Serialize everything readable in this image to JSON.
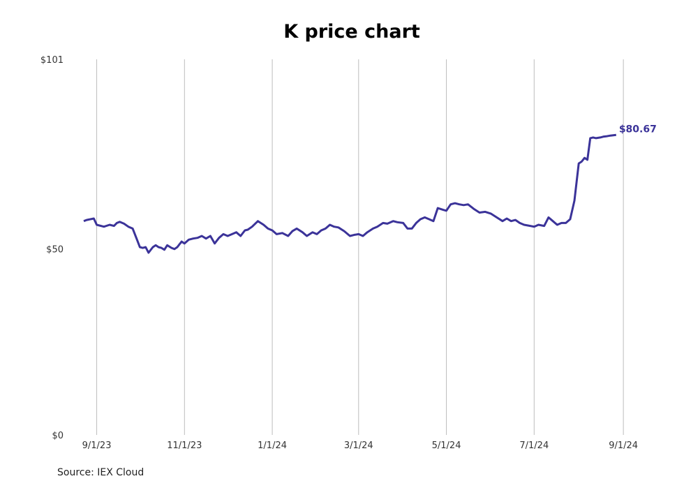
{
  "chart_data": {
    "type": "line",
    "title": "K price chart",
    "xlabel": "",
    "ylabel": "",
    "ylim": [
      0,
      101
    ],
    "y_ticks": [
      {
        "value": 0,
        "label": "$0"
      },
      {
        "value": 50,
        "label": "$50"
      },
      {
        "value": 101,
        "label": "$101"
      }
    ],
    "x_ticks": [
      {
        "date": "2023-09-01",
        "label": "9/1/23"
      },
      {
        "date": "2023-11-01",
        "label": "11/1/23"
      },
      {
        "date": "2024-01-01",
        "label": "1/1/24"
      },
      {
        "date": "2024-03-01",
        "label": "3/1/24"
      },
      {
        "date": "2024-05-01",
        "label": "5/1/24"
      },
      {
        "date": "2024-07-01",
        "label": "7/1/24"
      },
      {
        "date": "2024-09-01",
        "label": "9/1/24"
      }
    ],
    "xlim": [
      "2023-08-23",
      "2024-09-15"
    ],
    "grid": "vertical",
    "line_color": "#3b3399",
    "last_value_label": "$80.67",
    "series": [
      {
        "x": [
          "2023-08-23",
          "2023-08-25",
          "2023-08-30",
          "2023-09-01",
          "2023-09-06",
          "2023-09-10",
          "2023-09-13",
          "2023-09-15",
          "2023-09-17",
          "2023-09-20",
          "2023-09-23",
          "2023-09-26",
          "2023-09-29",
          "2023-10-01",
          "2023-10-03",
          "2023-10-05",
          "2023-10-07",
          "2023-10-10",
          "2023-10-12",
          "2023-10-14",
          "2023-10-16",
          "2023-10-18",
          "2023-10-20",
          "2023-10-23",
          "2023-10-25",
          "2023-10-27",
          "2023-10-30",
          "2023-11-01",
          "2023-11-04",
          "2023-11-07",
          "2023-11-10",
          "2023-11-13",
          "2023-11-16",
          "2023-11-19",
          "2023-11-22",
          "2023-11-25",
          "2023-11-28",
          "2023-12-01",
          "2023-12-04",
          "2023-12-07",
          "2023-12-10",
          "2023-12-13",
          "2023-12-15",
          "2023-12-18",
          "2023-12-22",
          "2023-12-26",
          "2023-12-29",
          "2024-01-01",
          "2024-01-04",
          "2024-01-08",
          "2024-01-12",
          "2024-01-15",
          "2024-01-18",
          "2024-01-22",
          "2024-01-25",
          "2024-01-29",
          "2024-02-01",
          "2024-02-04",
          "2024-02-07",
          "2024-02-10",
          "2024-02-13",
          "2024-02-16",
          "2024-02-20",
          "2024-02-24",
          "2024-02-27",
          "2024-03-01",
          "2024-03-04",
          "2024-03-07",
          "2024-03-11",
          "2024-03-14",
          "2024-03-18",
          "2024-03-21",
          "2024-03-25",
          "2024-03-28",
          "2024-04-01",
          "2024-04-04",
          "2024-04-07",
          "2024-04-10",
          "2024-04-13",
          "2024-04-16",
          "2024-04-19",
          "2024-04-22",
          "2024-04-25",
          "2024-04-29",
          "2024-05-01",
          "2024-05-04",
          "2024-05-07",
          "2024-05-10",
          "2024-05-13",
          "2024-05-16",
          "2024-05-20",
          "2024-05-24",
          "2024-05-28",
          "2024-06-01",
          "2024-06-05",
          "2024-06-09",
          "2024-06-12",
          "2024-06-15",
          "2024-06-18",
          "2024-06-21",
          "2024-06-24",
          "2024-06-27",
          "2024-07-01",
          "2024-07-04",
          "2024-07-08",
          "2024-07-11",
          "2024-07-14",
          "2024-07-17",
          "2024-07-20",
          "2024-07-23",
          "2024-07-26",
          "2024-07-29",
          "2024-08-01",
          "2024-08-03",
          "2024-08-05",
          "2024-08-07",
          "2024-08-09",
          "2024-08-11",
          "2024-08-13",
          "2024-08-16",
          "2024-08-18",
          "2024-08-20",
          "2024-08-23",
          "2024-08-27"
        ],
        "y": [
          57.5,
          57.8,
          58.2,
          56.5,
          56.0,
          56.5,
          56.2,
          57.0,
          57.3,
          56.8,
          56.0,
          55.5,
          52.5,
          50.5,
          50.3,
          50.5,
          49.0,
          50.5,
          51.0,
          50.5,
          50.3,
          49.8,
          51.0,
          50.3,
          50.0,
          50.5,
          52.0,
          51.5,
          52.5,
          52.8,
          53.0,
          53.5,
          52.8,
          53.5,
          51.5,
          53.0,
          54.0,
          53.5,
          54.0,
          54.5,
          53.5,
          55.0,
          55.2,
          56.0,
          57.5,
          56.5,
          55.5,
          55.0,
          54.0,
          54.3,
          53.5,
          54.8,
          55.5,
          54.5,
          53.5,
          54.5,
          54.0,
          55.0,
          55.5,
          56.5,
          56.0,
          55.8,
          54.8,
          53.5,
          53.8,
          54.0,
          53.5,
          54.5,
          55.5,
          56.0,
          57.0,
          56.8,
          57.5,
          57.2,
          57.0,
          55.5,
          55.5,
          57.0,
          58.0,
          58.5,
          58.0,
          57.5,
          61.0,
          60.5,
          60.3,
          62.0,
          62.3,
          62.0,
          61.8,
          62.0,
          60.8,
          59.8,
          60.0,
          59.5,
          58.5,
          57.5,
          58.2,
          57.5,
          57.8,
          57.0,
          56.5,
          56.3,
          56.0,
          56.5,
          56.2,
          58.5,
          57.5,
          56.5,
          57.0,
          57.0,
          58.0,
          63.0,
          73.0,
          73.5,
          74.5,
          74.0,
          79.8,
          80.0,
          79.8,
          80.0,
          80.2,
          80.3,
          80.5,
          80.67
        ]
      }
    ]
  },
  "source": "Source: IEX Cloud"
}
